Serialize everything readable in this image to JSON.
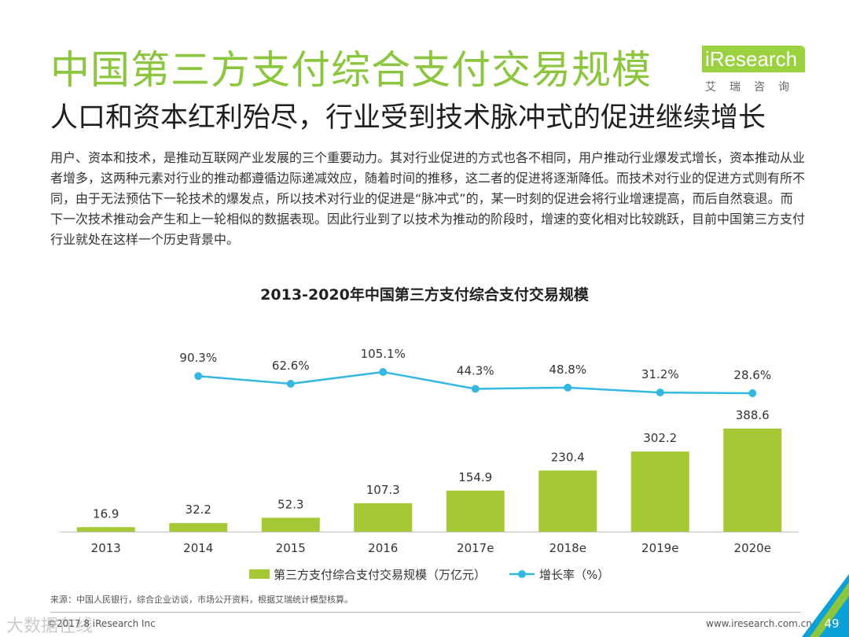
{
  "header": {
    "title": "中国第三方支付综合支付交易规模",
    "subtitle": "人口和资本红利殆尽，行业受到技术脉冲式的促进继续增长"
  },
  "logo": {
    "word": "iResearch",
    "sub": "艾瑞咨询"
  },
  "body": {
    "text": "用户、资本和技术，是推动互联网产业发展的三个重要动力。其对行业促进的方式也各不相同，用户推动行业爆发式增长，资本推动从业者增多，这两种元素对行业的推动都遵循边际递减效应，随着时间的推移，这二者的促进将逐渐降低。而技术对行业的促进方式则有所不同，由于无法预估下一轮技术的爆发点，所以技术对行业的促进是“脉冲式”的，某一时刻的促进会将行业增速提高，而后自然衰退。而下一次技术推动会产生和上一轮相似的数据表现。因此行业到了以技术为推动的阶段时，增速的变化相对比较跳跃，目前中国第三方支付行业就处在这样一个历史背景中。"
  },
  "chart_data": {
    "type": "bar",
    "title": "2013-2020年中国第三方支付综合支付交易规模",
    "categories": [
      "2013",
      "2014",
      "2015",
      "2016",
      "2017e",
      "2018e",
      "2019e",
      "2020e"
    ],
    "series": [
      {
        "name": "第三方支付综合支付交易规模（万亿元）",
        "type": "bar",
        "values": [
          16.9,
          32.2,
          52.3,
          107.3,
          154.9,
          230.4,
          302.2,
          388.6
        ],
        "labels": [
          "16.9",
          "32.2",
          "52.3",
          "107.3",
          "154.9",
          "230.4",
          "302.2",
          "388.6"
        ],
        "color": "#a5c934"
      },
      {
        "name": "增长率（%）",
        "type": "line",
        "x": [
          "2014",
          "2015",
          "2016",
          "2017e",
          "2018e",
          "2019e",
          "2020e"
        ],
        "values": [
          90.3,
          62.6,
          105.1,
          44.3,
          48.8,
          31.2,
          28.6
        ],
        "labels": [
          "90.3%",
          "62.6%",
          "105.1%",
          "44.3%",
          "48.8%",
          "31.2%",
          "28.6%"
        ],
        "color": "#35b8e0"
      }
    ],
    "ylim": [
      0,
      388.6
    ],
    "legend": "bottom"
  },
  "footer": {
    "source": "来源：中国人民银行，综合企业访谈，市场公开资料，根据艾瑞统计模型核算。",
    "copyright": "©2017.8 iResearch Inc",
    "website": "www.iresearch.com.cn",
    "page": "49",
    "watermark": "大数据在线"
  },
  "colors": {
    "title": "#8cc63f",
    "accent": "#a5c934",
    "line": "#35b8e0"
  }
}
